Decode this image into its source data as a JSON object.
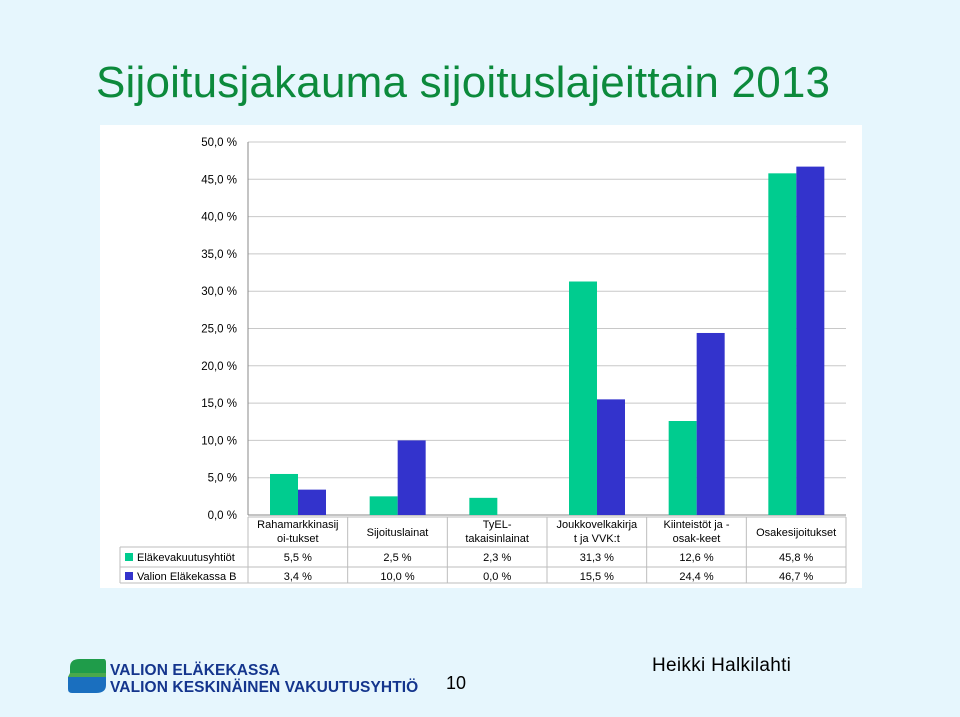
{
  "title": "Sijoitusjakauma sijoituslajeittain 2013",
  "chart_data": {
    "type": "bar",
    "categories": [
      [
        "Rahamarkkinasij",
        "oi-tukset"
      ],
      [
        "Sijoituslainat"
      ],
      [
        "TyEL-",
        "takaisinlainat"
      ],
      [
        "Joukkovelkakirja",
        "t ja VVK:t"
      ],
      [
        "Kiinteistöt ja -",
        "osak-keet"
      ],
      [
        "Osakesijoitukset"
      ]
    ],
    "series": [
      {
        "name": "Eläkevakuutusyhtiöt",
        "color": "#00cc8f",
        "values": [
          5.5,
          2.5,
          2.3,
          31.3,
          12.6,
          45.8
        ],
        "labels": [
          "5,5 %",
          "2,5 %",
          "2,3 %",
          "31,3 %",
          "12,6 %",
          "45,8 %"
        ]
      },
      {
        "name": "Valion Eläkekassa B",
        "color": "#3333cc",
        "values": [
          3.4,
          10.0,
          0.0,
          15.5,
          24.4,
          46.7
        ],
        "labels": [
          "3,4 %",
          "10,0 %",
          "0,0 %",
          "15,5 %",
          "24,4 %",
          "46,7 %"
        ]
      }
    ],
    "ylim": [
      0,
      50
    ],
    "yticks": [
      {
        "value": 0,
        "label": "0,0 %"
      },
      {
        "value": 5,
        "label": "5,0 %"
      },
      {
        "value": 10,
        "label": "10,0 %"
      },
      {
        "value": 15,
        "label": "15,0 %"
      },
      {
        "value": 20,
        "label": "20,0 %"
      },
      {
        "value": 25,
        "label": "25,0 %"
      },
      {
        "value": 30,
        "label": "30,0 %"
      },
      {
        "value": 35,
        "label": "35,0 %"
      },
      {
        "value": 40,
        "label": "40,0 %"
      },
      {
        "value": 45,
        "label": "45,0 %"
      },
      {
        "value": 50,
        "label": "50,0 %"
      }
    ],
    "grid": true,
    "data_table": true
  },
  "footer": {
    "org_line_1": "VALION ELÄKEKASSA",
    "org_line_2": "VALION KESKINÄINEN VAKUUTUSYHTIÖ",
    "page_number": "10",
    "author": "Heikki Halkilahti"
  }
}
